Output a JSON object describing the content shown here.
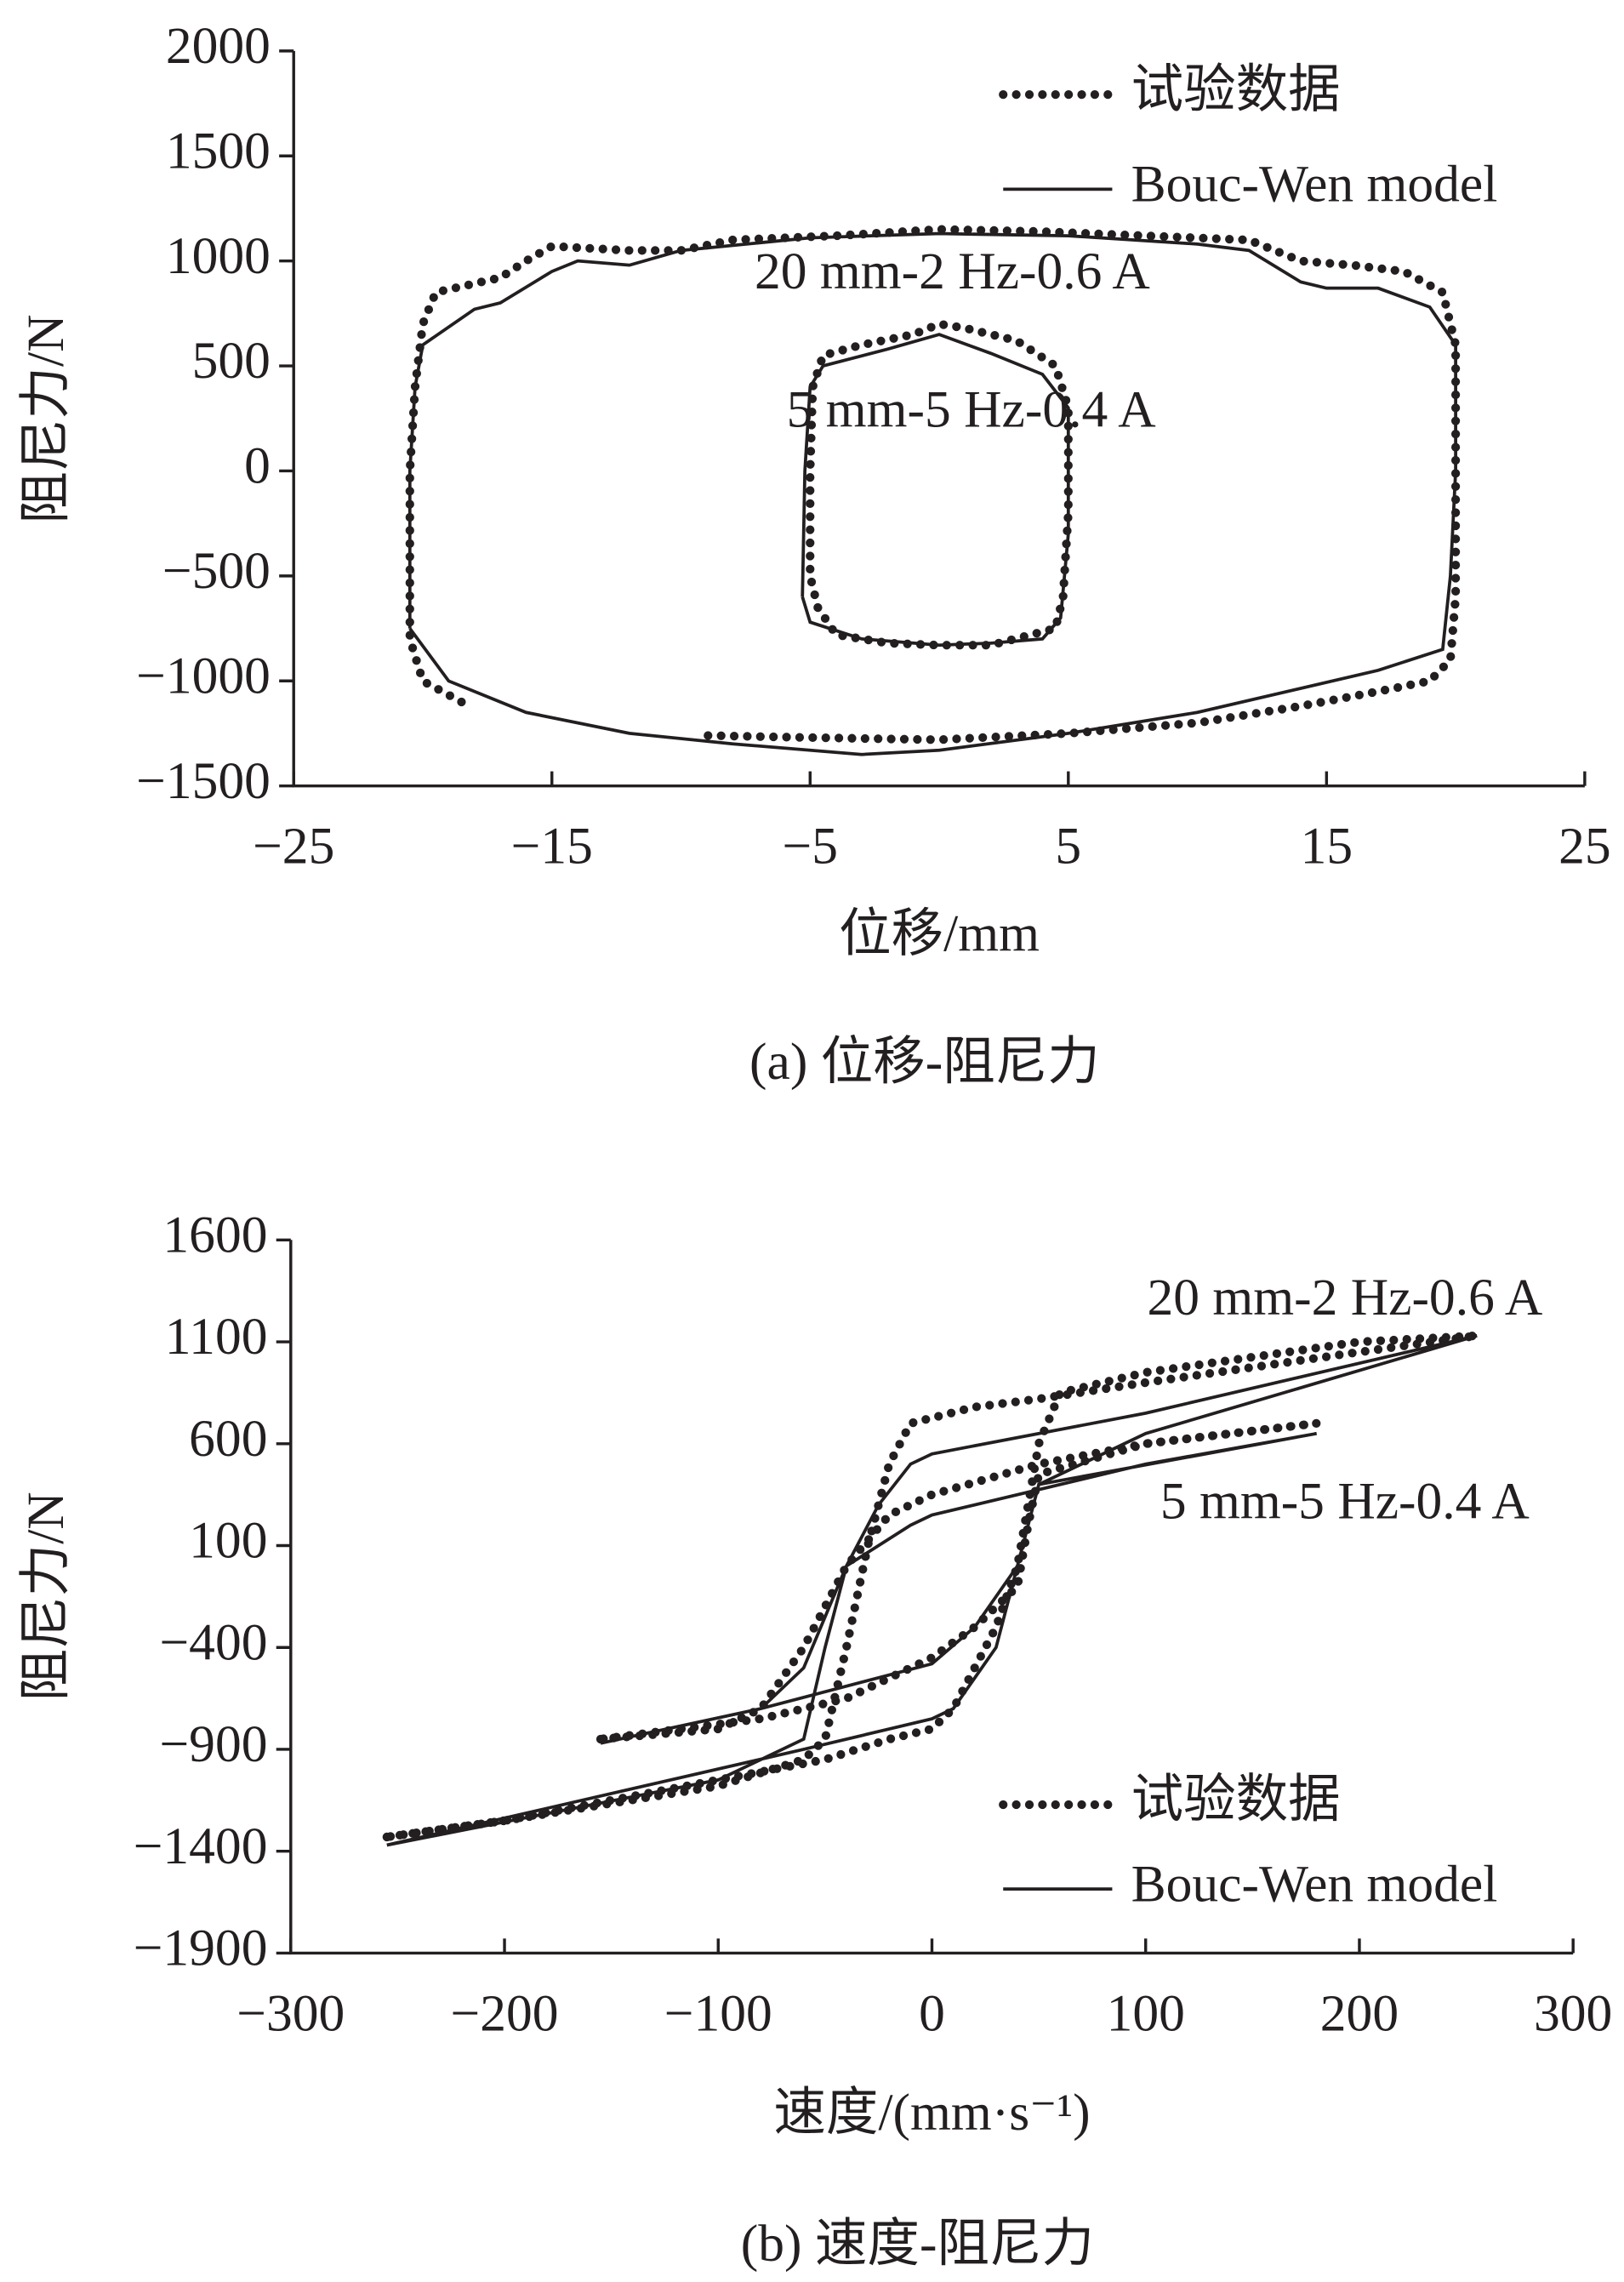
{
  "chart_data": [
    {
      "type": "line",
      "title": "(a) 位移-阻尼力",
      "x_label": "位移/mm",
      "y_label": "阻尼力/N",
      "xlim": [
        -25,
        25
      ],
      "ylim": [
        -1500,
        2000
      ],
      "xticks": [
        {
          "value": -25,
          "label": "−25"
        },
        {
          "value": -15,
          "label": "−15"
        },
        {
          "value": -5,
          "label": "−5"
        },
        5,
        15,
        25
      ],
      "yticks": [
        {
          "value": -1500,
          "label": "−1500"
        },
        {
          "value": -1000,
          "label": "−1000"
        },
        {
          "value": -500,
          "label": "−500"
        },
        0,
        500,
        1000,
        1500,
        2000
      ],
      "legend": "upper right",
      "annotations": [
        "20 mm-2 Hz-0.6 A",
        "5 mm-5 Hz-0.4 A"
      ],
      "series": [
        {
          "name": "试验数据",
          "color": "#231f20",
          "style": "dotted",
          "x": [
            -18.5,
            -20,
            -20.5,
            -20.5,
            -20.5,
            -20.3,
            -20,
            -19.5,
            -17,
            -16,
            -15,
            -12,
            -10,
            -8,
            -4,
            0,
            4,
            8,
            12,
            14,
            16,
            18,
            19.5,
            20,
            20,
            20,
            20,
            19.8,
            19,
            17,
            14,
            10,
            5,
            0,
            -5,
            -9,
            null,
            -4.7,
            -5,
            -5,
            -4.9,
            -4.5,
            -3,
            -1,
            0,
            1,
            3,
            4.5,
            5,
            5,
            4.8,
            4.5,
            2,
            0,
            -2,
            -4,
            -4.7
          ],
          "y": [
            -1100,
            -1000,
            -800,
            -400,
            0,
            400,
            700,
            850,
            920,
            1000,
            1070,
            1050,
            1050,
            1100,
            1120,
            1150,
            1140,
            1120,
            1100,
            1000,
            980,
            950,
            850,
            600,
            200,
            -200,
            -600,
            -900,
            -1000,
            -1050,
            -1120,
            -1200,
            -1250,
            -1280,
            -1270,
            -1260,
            null,
            -650,
            -500,
            0,
            400,
            550,
            600,
            650,
            700,
            680,
            620,
            500,
            300,
            -200,
            -600,
            -750,
            -830,
            -830,
            -820,
            -780,
            -650
          ]
        },
        {
          "name": "Bouc-Wen model",
          "color": "#231f20",
          "style": "solid",
          "x": [
            -20.5,
            -20.5,
            -20.5,
            -20.3,
            -20,
            -18,
            -17,
            -15,
            -14,
            -12,
            -10,
            -5,
            0,
            5,
            10,
            12,
            14,
            15,
            17,
            19,
            20,
            20,
            19.8,
            19.5,
            17,
            10,
            5,
            0,
            -3,
            -8,
            -12,
            -16,
            -19,
            -20.5,
            null,
            -5.3,
            -5.2,
            -5,
            -4.5,
            -2,
            0,
            2,
            4,
            5,
            5,
            4.7,
            4,
            2,
            0,
            -3,
            -5,
            -5.3
          ],
          "y": [
            -750,
            -500,
            0,
            400,
            600,
            770,
            800,
            950,
            1000,
            980,
            1050,
            1110,
            1130,
            1120,
            1080,
            1050,
            900,
            870,
            870,
            780,
            600,
            0,
            -500,
            -850,
            -950,
            -1150,
            -1250,
            -1330,
            -1350,
            -1300,
            -1250,
            -1150,
            -1000,
            -750,
            null,
            -600,
            0,
            400,
            500,
            580,
            650,
            560,
            460,
            300,
            -300,
            -700,
            -800,
            -820,
            -830,
            -800,
            -720,
            -600
          ]
        }
      ]
    },
    {
      "type": "line",
      "title": "(b) 速度-阻尼力",
      "x_label": "速度/(mm·s⁻¹)",
      "y_label": "阻尼力/N",
      "xlim": [
        -300,
        300
      ],
      "ylim": [
        -1900,
        1600
      ],
      "xticks": [
        {
          "value": -300,
          "label": "−300"
        },
        {
          "value": -200,
          "label": "−200"
        },
        {
          "value": -100,
          "label": "−100"
        },
        0,
        100,
        200,
        300
      ],
      "yticks": [
        {
          "value": -1900,
          "label": "−1900"
        },
        {
          "value": -1400,
          "label": "−1400"
        },
        {
          "value": -900,
          "label": "−900"
        },
        {
          "value": -400,
          "label": "−400"
        },
        100,
        600,
        1100,
        1600
      ],
      "legend": "lower right",
      "annotations": [
        "20 mm-2 Hz-0.6 A",
        "5 mm-5 Hz-0.4 A"
      ],
      "series": [
        {
          "name": "试验数据",
          "color": "#231f20",
          "style": "dotted",
          "x": [
            -255,
            -200,
            -100,
            -60,
            -50,
            -40,
            -30,
            -20,
            -10,
            20,
            50,
            100,
            200,
            255,
            200,
            100,
            60,
            50,
            40,
            30,
            20,
            10,
            0,
            -20,
            -50,
            -100,
            -200,
            -255,
            null,
            -155,
            -100,
            -80,
            -60,
            -40,
            -20,
            0,
            50,
            100,
            180,
            100,
            50,
            45,
            40,
            20,
            0,
            -40,
            -80,
            -155
          ],
          "y": [
            -1330,
            -1250,
            -1080,
            -950,
            -850,
            -400,
            100,
            500,
            700,
            780,
            820,
            900,
            1050,
            1130,
            1100,
            950,
            850,
            600,
            0,
            -300,
            -500,
            -700,
            -800,
            -850,
            -950,
            -1050,
            -1250,
            -1330,
            null,
            -850,
            -800,
            -700,
            -400,
            0,
            250,
            350,
            500,
            600,
            700,
            600,
            450,
            200,
            -100,
            -300,
            -450,
            -650,
            -750,
            -850
          ]
        },
        {
          "name": "Bouc-Wen model",
          "color": "#231f20",
          "style": "solid",
          "x": [
            -255,
            -100,
            -60,
            -50,
            -40,
            -25,
            -10,
            0,
            100,
            255,
            100,
            50,
            40,
            30,
            10,
            0,
            -60,
            -255,
            null,
            -155,
            -80,
            -60,
            -40,
            -10,
            0,
            100,
            180,
            50,
            40,
            20,
            0,
            -80,
            -155
          ],
          "y": [
            -1370,
            -1050,
            -850,
            -400,
            0,
            300,
            500,
            550,
            750,
            1130,
            650,
            400,
            0,
            -400,
            -700,
            -750,
            -900,
            -1370,
            null,
            -870,
            -700,
            -500,
            0,
            200,
            250,
            500,
            650,
            400,
            0,
            -300,
            -480,
            -700,
            -870
          ]
        }
      ]
    }
  ]
}
